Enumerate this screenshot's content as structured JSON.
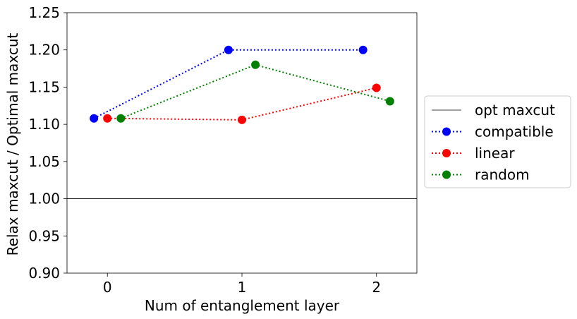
{
  "chart_data": {
    "type": "line",
    "xlabel": "Num of entanglement layer",
    "ylabel": "Relax maxcut / Optimal maxcut",
    "xlim": [
      -0.3,
      2.3
    ],
    "ylim": [
      0.9,
      1.25
    ],
    "x_ticks": [
      "0",
      "1",
      "2"
    ],
    "y_ticks": [
      "0.90",
      "0.95",
      "1.00",
      "1.05",
      "1.10",
      "1.15",
      "1.20",
      "1.25"
    ],
    "grid": false,
    "legend_position": "right, outside",
    "reference_line": {
      "name": "opt maxcut",
      "y": 1.0,
      "color": "#000000"
    },
    "series": [
      {
        "name": "compatible",
        "color": "#0000ff",
        "x": [
          -0.1,
          0.9,
          1.9
        ],
        "y": [
          1.108,
          1.2,
          1.2
        ]
      },
      {
        "name": "linear",
        "color": "#ff0000",
        "x": [
          0,
          1,
          2
        ],
        "y": [
          1.108,
          1.106,
          1.149
        ]
      },
      {
        "name": "random",
        "color": "#008000",
        "x": [
          0.1,
          1.1,
          2.1
        ],
        "y": [
          1.108,
          1.18,
          1.131
        ]
      }
    ]
  }
}
